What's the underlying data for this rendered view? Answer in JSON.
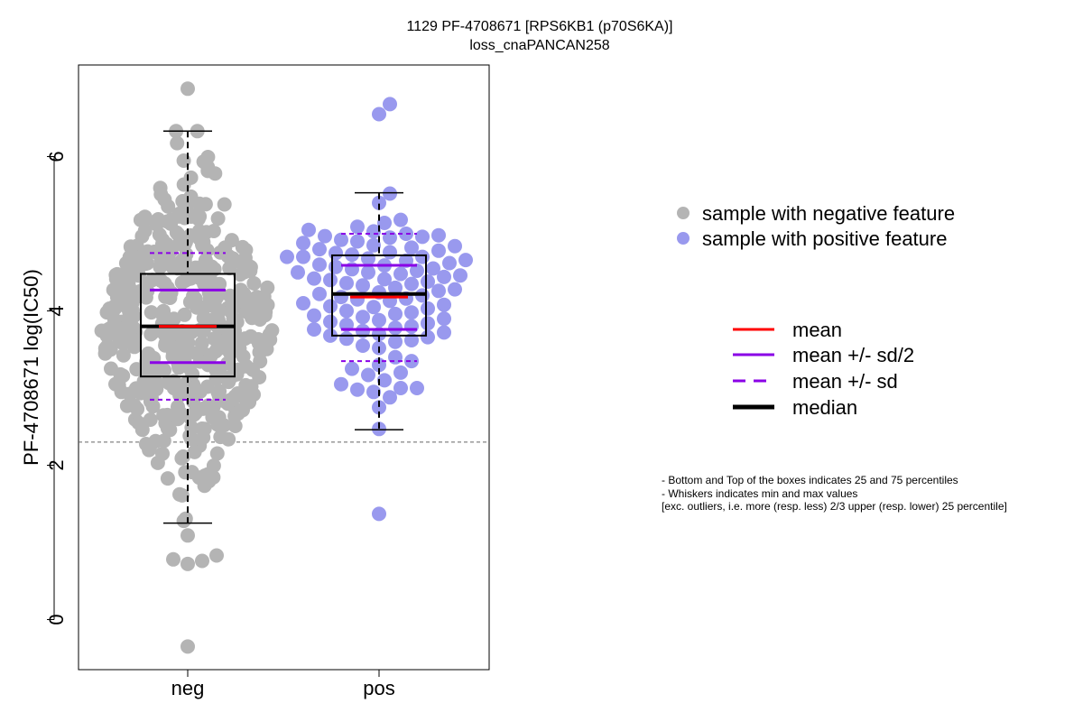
{
  "chart_data": {
    "type": "scatter",
    "title": "1129 PF-4708671 [RPS6KB1 (p70S6KA)]",
    "subtitle": "loss_cnaPANCAN258",
    "ylabel": "PF-4708671 log(IC50)",
    "xlabel": "",
    "categories": [
      "neg",
      "pos"
    ],
    "ylim": [
      -0.7,
      7.1
    ],
    "yticks": [
      0,
      2,
      4,
      6
    ],
    "reference_line": 2.3,
    "grid": false,
    "colors": {
      "neg": "#b4b4b4",
      "pos": "#9999ee",
      "mean": "#ff0000",
      "sd": "#8a00e6",
      "median": "#000000"
    },
    "groups": [
      {
        "name": "neg",
        "stats": {
          "q1": 3.15,
          "median": 3.8,
          "q3": 4.48,
          "mean": 3.8,
          "mean_plus_half_sd": 4.27,
          "mean_minus_half_sd": 3.33,
          "mean_plus_sd": 4.75,
          "mean_minus_sd": 2.85,
          "whisker_low": 1.25,
          "whisker_high": 6.33
        },
        "n_points": 470,
        "outliers": [
          6.88,
          1.09,
          0.83,
          0.78,
          0.72,
          0.76,
          -0.35
        ]
      },
      {
        "name": "pos",
        "stats": {
          "q1": 3.68,
          "median": 4.22,
          "q3": 4.72,
          "mean": 4.18,
          "mean_plus_half_sd": 4.59,
          "mean_minus_half_sd": 3.76,
          "mean_plus_sd": 5.0,
          "mean_minus_sd": 3.35,
          "whisker_low": 2.46,
          "whisker_high": 5.53
        },
        "points": [
          6.68,
          6.55,
          5.52,
          5.4,
          5.18,
          5.14,
          5.09,
          5.05,
          5.03,
          5.0,
          4.98,
          4.97,
          4.96,
          4.95,
          4.92,
          4.9,
          4.88,
          4.85,
          4.84,
          4.82,
          4.8,
          4.78,
          4.76,
          4.75,
          4.73,
          4.7,
          4.7,
          4.7,
          4.68,
          4.66,
          4.65,
          4.62,
          4.6,
          4.59,
          4.57,
          4.55,
          4.54,
          4.52,
          4.5,
          4.5,
          4.48,
          4.46,
          4.44,
          4.42,
          4.41,
          4.4,
          4.38,
          4.36,
          4.35,
          4.33,
          4.3,
          4.28,
          4.26,
          4.24,
          4.22,
          4.2,
          4.18,
          4.16,
          4.15,
          4.13,
          4.1,
          4.08,
          4.06,
          4.05,
          4.03,
          4.0,
          3.98,
          3.96,
          3.94,
          3.92,
          3.9,
          3.88,
          3.86,
          3.84,
          3.82,
          3.8,
          3.78,
          3.76,
          3.74,
          3.72,
          3.7,
          3.68,
          3.66,
          3.64,
          3.62,
          3.6,
          3.55,
          3.52,
          3.4,
          3.35,
          3.3,
          3.25,
          3.2,
          3.17,
          3.1,
          3.05,
          3.0,
          3.0,
          2.98,
          2.95,
          2.88,
          2.75,
          2.47,
          1.37
        ]
      }
    ],
    "legend": {
      "position": "right",
      "points": [
        {
          "label": "sample with negative feature",
          "color": "#b4b4b4"
        },
        {
          "label": "sample with positive feature",
          "color": "#9999ee"
        }
      ],
      "lines": [
        {
          "label": "mean",
          "color": "#ff0000",
          "style": "solid"
        },
        {
          "label": "mean +/- sd/2",
          "color": "#8a00e6",
          "style": "solid"
        },
        {
          "label": "mean +/- sd",
          "color": "#8a00e6",
          "style": "dashed"
        },
        {
          "label": "median",
          "color": "#000000",
          "style": "solid-thick"
        }
      ]
    },
    "notes": [
      "- Bottom and Top of the boxes indicates 25 and 75 percentiles",
      "- Whiskers indicates min and max values",
      "[exc. outliers, i.e. more (resp. less) 2/3 upper (resp. lower) 25 percentile]"
    ]
  }
}
